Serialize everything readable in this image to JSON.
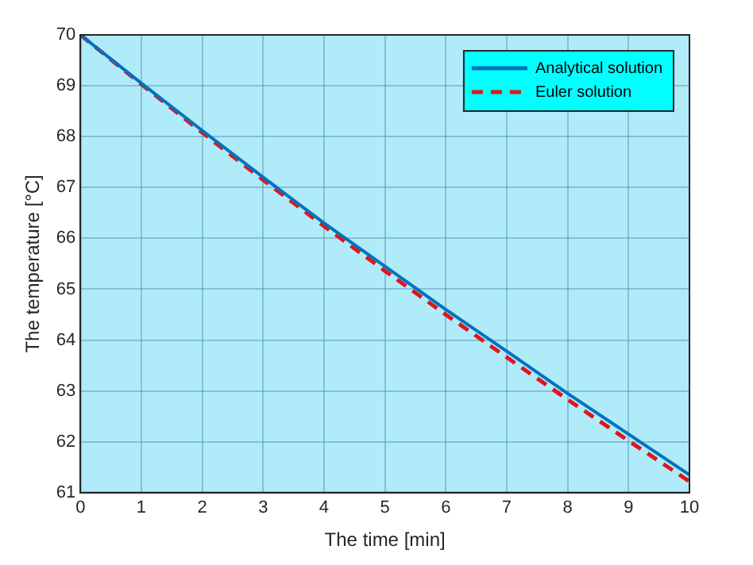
{
  "chart_data": {
    "type": "line",
    "xlabel": "The time [min]",
    "ylabel": "The temperature [°C]",
    "x": [
      0,
      1,
      2,
      3,
      4,
      5,
      6,
      7,
      8,
      9,
      10
    ],
    "series": [
      {
        "name": "Analytical solution",
        "color": "#0072bd",
        "line_style": "solid",
        "values": [
          70,
          69.05,
          68.12,
          67.2,
          66.3,
          65.45,
          64.6,
          63.78,
          62.95,
          62.15,
          61.35
        ]
      },
      {
        "name": "Euler solution",
        "color": "#e0161c",
        "line_style": "dashed",
        "values": [
          70,
          69.03,
          68.08,
          67.15,
          66.24,
          65.36,
          64.5,
          63.66,
          62.83,
          62.02,
          61.22
        ]
      }
    ],
    "xlim": [
      0,
      10
    ],
    "xticks": [
      0,
      1,
      2,
      3,
      4,
      5,
      6,
      7,
      8,
      9,
      10
    ],
    "ylim": [
      61,
      70
    ],
    "yticks": [
      61,
      62,
      63,
      64,
      65,
      66,
      67,
      68,
      69,
      70
    ],
    "grid": true,
    "legend": "top right",
    "marker": "none"
  }
}
